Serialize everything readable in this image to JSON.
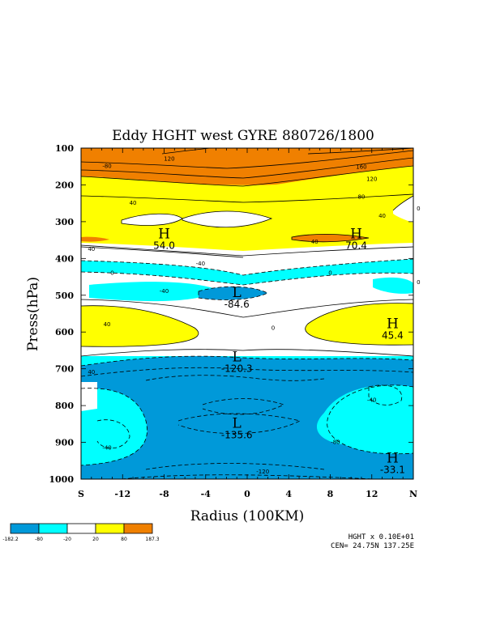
{
  "chart_data": {
    "type": "contour",
    "title": "Eddy HGHT west GYRE 880726/1800",
    "xlabel": "Radius (100KM)",
    "ylabel": "Press(hPa)",
    "x_ticks": [
      "S",
      "-12",
      "-8",
      "-4",
      "0",
      "4",
      "8",
      "12",
      "N"
    ],
    "x_values": [
      -16,
      -12,
      -8,
      -4,
      0,
      4,
      8,
      12,
      16
    ],
    "xlim": [
      -16,
      16
    ],
    "y_ticks": [
      "100",
      "200",
      "300",
      "400",
      "500",
      "600",
      "700",
      "800",
      "900",
      "1000"
    ],
    "y_values": [
      100,
      200,
      300,
      400,
      500,
      600,
      700,
      800,
      900,
      1000
    ],
    "ylim": [
      1000,
      100
    ],
    "colorbar": {
      "labels": [
        "-182.2",
        "-80",
        "-20",
        "20",
        "80",
        "187.3"
      ],
      "colors": [
        "#0099d9",
        "#00ffff",
        "#ffffff",
        "#ffff00",
        "#f08000"
      ]
    },
    "extrema": [
      {
        "type": "H",
        "value": "54.0",
        "x": -8,
        "p": 345
      },
      {
        "type": "H",
        "value": "70.4",
        "x": 10.5,
        "p": 345
      },
      {
        "type": "L",
        "value": "-84.6",
        "x": -1,
        "p": 505
      },
      {
        "type": "H",
        "value": "45.4",
        "x": 14,
        "p": 590
      },
      {
        "type": "L",
        "value": "-120.3",
        "x": -1,
        "p": 680
      },
      {
        "type": "L",
        "value": "-135.6",
        "x": -1,
        "p": 860
      },
      {
        "type": "H",
        "value": "-33.1",
        "x": 14,
        "p": 955
      }
    ],
    "contour_labels": [
      {
        "text": "-80",
        "x": -13.5,
        "p": 150
      },
      {
        "text": "120",
        "x": -7.5,
        "p": 130
      },
      {
        "text": "160",
        "x": 11,
        "p": 152
      },
      {
        "text": "120",
        "x": 12,
        "p": 185
      },
      {
        "text": "80",
        "x": 11,
        "p": 233
      },
      {
        "text": "40",
        "x": -11,
        "p": 250
      },
      {
        "text": "40",
        "x": 13,
        "p": 285
      },
      {
        "text": "0",
        "x": 16.5,
        "p": 265
      },
      {
        "text": "40",
        "x": -15,
        "p": 375
      },
      {
        "text": "40",
        "x": 6.5,
        "p": 355
      },
      {
        "text": "-40",
        "x": -4.5,
        "p": 415
      },
      {
        "text": "0",
        "x": -13,
        "p": 440
      },
      {
        "text": "0",
        "x": 8,
        "p": 440
      },
      {
        "text": "0",
        "x": 16.5,
        "p": 465
      },
      {
        "text": "-40",
        "x": -8,
        "p": 490
      },
      {
        "text": "40",
        "x": -13.5,
        "p": 580
      },
      {
        "text": "0",
        "x": 2.5,
        "p": 590
      },
      {
        "text": "40",
        "x": -15,
        "p": 710
      },
      {
        "text": "-40",
        "x": 12,
        "p": 785
      },
      {
        "text": "-40",
        "x": -13.5,
        "p": 915
      },
      {
        "text": "-80",
        "x": 8.5,
        "p": 900
      },
      {
        "text": "-120",
        "x": 1.5,
        "p": 980
      }
    ],
    "info": {
      "scale": "HGHT x  0.10E+01",
      "center": "CEN= 24.75N  137.25E"
    }
  }
}
